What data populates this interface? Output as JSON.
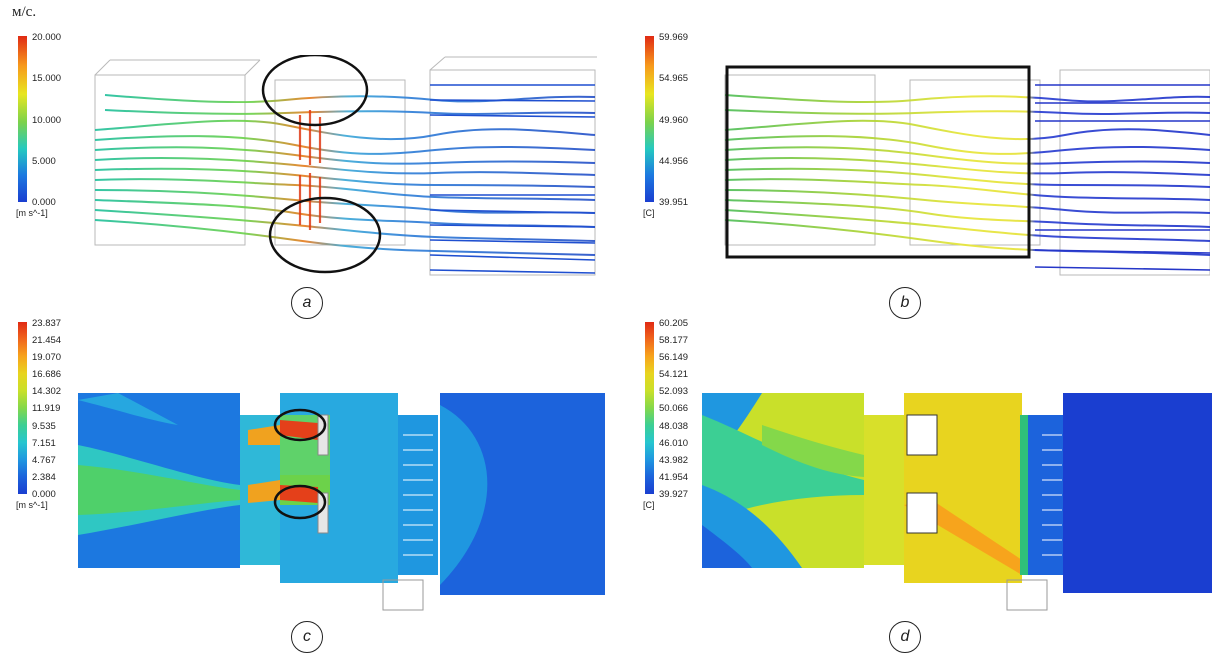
{
  "figure": {
    "top_unit_label": "м/с.",
    "panels": [
      {
        "id": "a",
        "label": "a",
        "legend_unit": "[m s^-1]",
        "legend_ticks": [
          "20.000",
          "15.000",
          "10.000",
          "5.000",
          "0.000"
        ],
        "colormap": "jet",
        "annotations": [
          "circle-top",
          "circle-bottom"
        ]
      },
      {
        "id": "b",
        "label": "b",
        "legend_unit": "[C]",
        "legend_ticks": [
          "59.969",
          "54.965",
          "49.960",
          "44.956",
          "39.951"
        ],
        "colormap": "jet",
        "annotations": [
          "rectangle"
        ]
      },
      {
        "id": "c",
        "label": "c",
        "legend_unit": "[m s^-1]",
        "legend_ticks": [
          "23.837",
          "21.454",
          "19.070",
          "16.686",
          "14.302",
          "11.919",
          "9.535",
          "7.151",
          "4.767",
          "2.384",
          "0.000"
        ],
        "colormap": "jet",
        "annotations": [
          "ellipse-top",
          "ellipse-bottom"
        ]
      },
      {
        "id": "d",
        "label": "d",
        "legend_unit": "[C]",
        "legend_ticks": [
          "60.205",
          "58.177",
          "56.149",
          "54.121",
          "52.093",
          "50.066",
          "48.038",
          "46.010",
          "43.982",
          "41.954",
          "39.927"
        ],
        "colormap": "jet",
        "annotations": []
      }
    ]
  }
}
